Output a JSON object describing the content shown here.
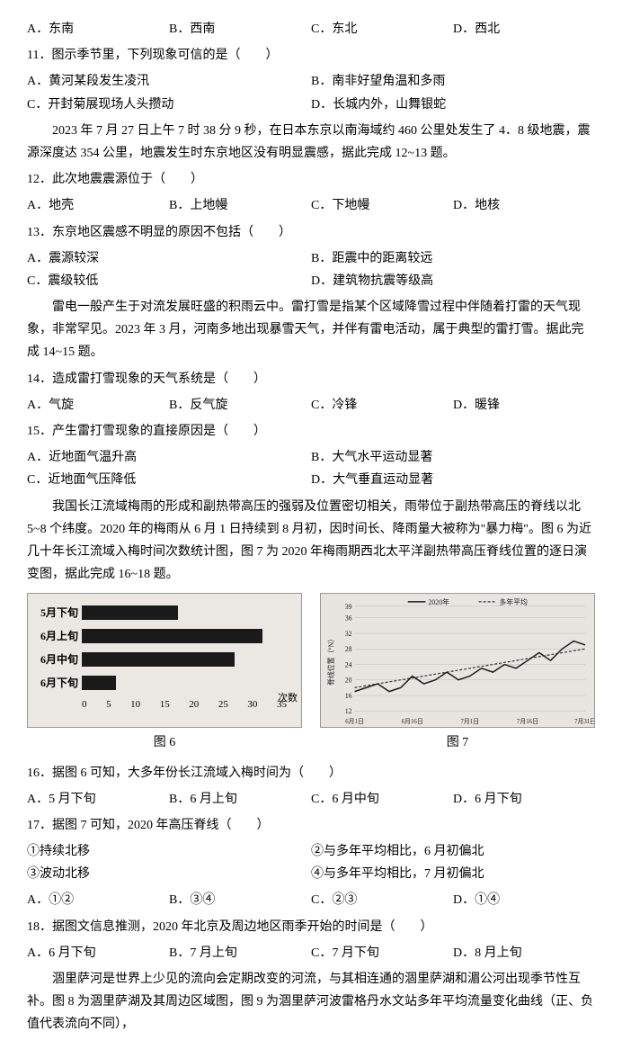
{
  "q_pre_options": {
    "A": "A．东南",
    "B": "B．西南",
    "C": "C．东北",
    "D": "D．西北"
  },
  "q11": {
    "stem": "11．图示季节里，下列现象可信的是（　　）",
    "A": "A．黄河某段发生凌汛",
    "B": "B．南非好望角温和多雨",
    "C": "C．开封菊展现场人头攒动",
    "D": "D．长城内外，山舞银蛇"
  },
  "passage12": "2023 年 7 月 27 日上午 7 时 38 分 9 秒，在日本东京以南海域约 460 公里处发生了 4．8 级地震，震源深度达 354 公里，地震发生时东京地区没有明显震感，据此完成 12~13 题。",
  "q12": {
    "stem": "12．此次地震震源位于（　　）",
    "A": "A．地壳",
    "B": "B．上地幔",
    "C": "C．下地幔",
    "D": "D．地核"
  },
  "q13": {
    "stem": "13．东京地区震感不明显的原因不包括（　　）",
    "A": "A．震源较深",
    "B": "B．距震中的距离较远",
    "C": "C．震级较低",
    "D": "D．建筑物抗震等级高"
  },
  "passage14": "雷电一般产生于对流发展旺盛的积雨云中。雷打雪是指某个区域降雪过程中伴随着打雷的天气现象，非常罕见。2023 年 3 月，河南多地出现暴雪天气，并伴有雷电活动，属于典型的雷打雪。据此完成 14~15 题。",
  "q14": {
    "stem": "14．造成雷打雪现象的天气系统是（　　）",
    "A": "A．气旋",
    "B": "B．反气旋",
    "C": "C．冷锋",
    "D": "D．暖锋"
  },
  "q15": {
    "stem": "15．产生雷打雪现象的直接原因是（　　）",
    "A": "A．近地面气温升高",
    "B": "B．大气水平运动显著",
    "C": "C．近地面气压降低",
    "D": "D．大气垂直运动显著"
  },
  "passage16": "我国长江流域梅雨的形成和副热带高压的强弱及位置密切相关，雨带位于副热带高压的脊线以北 5~8 个纬度。2020 年的梅雨从 6 月 1 日持续到 8 月初，因时间长、降雨量大被称为\"暴力梅\"。图 6 为近几十年长江流域入梅时间次数统计图，图 7 为 2020 年梅雨期西北太平洋副热带高压脊线位置的逐日演变图，据此完成 16~18 题。",
  "fig6": {
    "caption": "图 6",
    "type": "bar",
    "orientation": "horizontal",
    "categories": [
      "5月下旬",
      "6月上旬",
      "6月中旬",
      "6月下旬"
    ],
    "values": [
      17,
      32,
      27,
      6
    ],
    "xmax": 35,
    "xticks": [
      0,
      5,
      10,
      15,
      20,
      25,
      30,
      35
    ],
    "xlabel": "次数",
    "bar_color": "#1a1a1a",
    "background_color": "#ebe8e3",
    "label_fontsize": 12
  },
  "fig7": {
    "caption": "图 7",
    "type": "line",
    "series": [
      {
        "name": "2020年",
        "style": "solid",
        "color": "#1a1a1a"
      },
      {
        "name": "多年平均",
        "style": "dashed",
        "color": "#333333"
      }
    ],
    "ylabel": "脊线位置（°N）",
    "ylim": [
      12,
      39
    ],
    "yticks": [
      12,
      16,
      20,
      24,
      28,
      32,
      36,
      39
    ],
    "xticks": [
      "6月1日",
      "6月16日",
      "7月1日",
      "7月16日",
      "7月31日"
    ],
    "background_color": "#e8e5e0",
    "data_2020_x": [
      0,
      5,
      10,
      15,
      20,
      25,
      30,
      35,
      40,
      45,
      50,
      55,
      60,
      65,
      70,
      75,
      80,
      85,
      90,
      95,
      100
    ],
    "data_2020_y": [
      17,
      18,
      19,
      17,
      18,
      21,
      19,
      20,
      22,
      20,
      21,
      23,
      22,
      24,
      23,
      25,
      27,
      25,
      28,
      30,
      29
    ],
    "data_avg_x": [
      0,
      10,
      20,
      30,
      40,
      50,
      60,
      70,
      80,
      90,
      100
    ],
    "data_avg_y": [
      18,
      19,
      20,
      21,
      22,
      23,
      24,
      25,
      26,
      27,
      28
    ]
  },
  "q16": {
    "stem": "16．据图 6 可知，大多年份长江流域入梅时间为（　　）",
    "A": "A．5 月下旬",
    "B": "B．6 月上旬",
    "C": "C．6 月中旬",
    "D": "D．6 月下旬"
  },
  "q17": {
    "stem": "17．据图 7 可知，2020 年高压脊线（　　）",
    "s1": "①持续北移",
    "s2": "②与多年平均相比，6 月初偏北",
    "s3": "③波动北移",
    "s4": "④与多年平均相比，7 月初偏北",
    "A": "A．①②",
    "B": "B．③④",
    "C": "C．②③",
    "D": "D．①④"
  },
  "q18": {
    "stem": "18．据图文信息推测，2020 年北京及周边地区雨季开始的时间是（　　）",
    "A": "A．6 月下旬",
    "B": "B．7 月上旬",
    "C": "C．7 月下旬",
    "D": "D．8 月上旬"
  },
  "passage_tone": "涸里萨河是世界上少见的流向会定期改变的河流，与其相连通的涸里萨湖和湄公河出现季节性互补。图 8 为涸里萨湖及其周边区域图，图 9 为涸里萨河波雷格丹水文站多年平均流量变化曲线（正、负值代表流向不同），"
}
